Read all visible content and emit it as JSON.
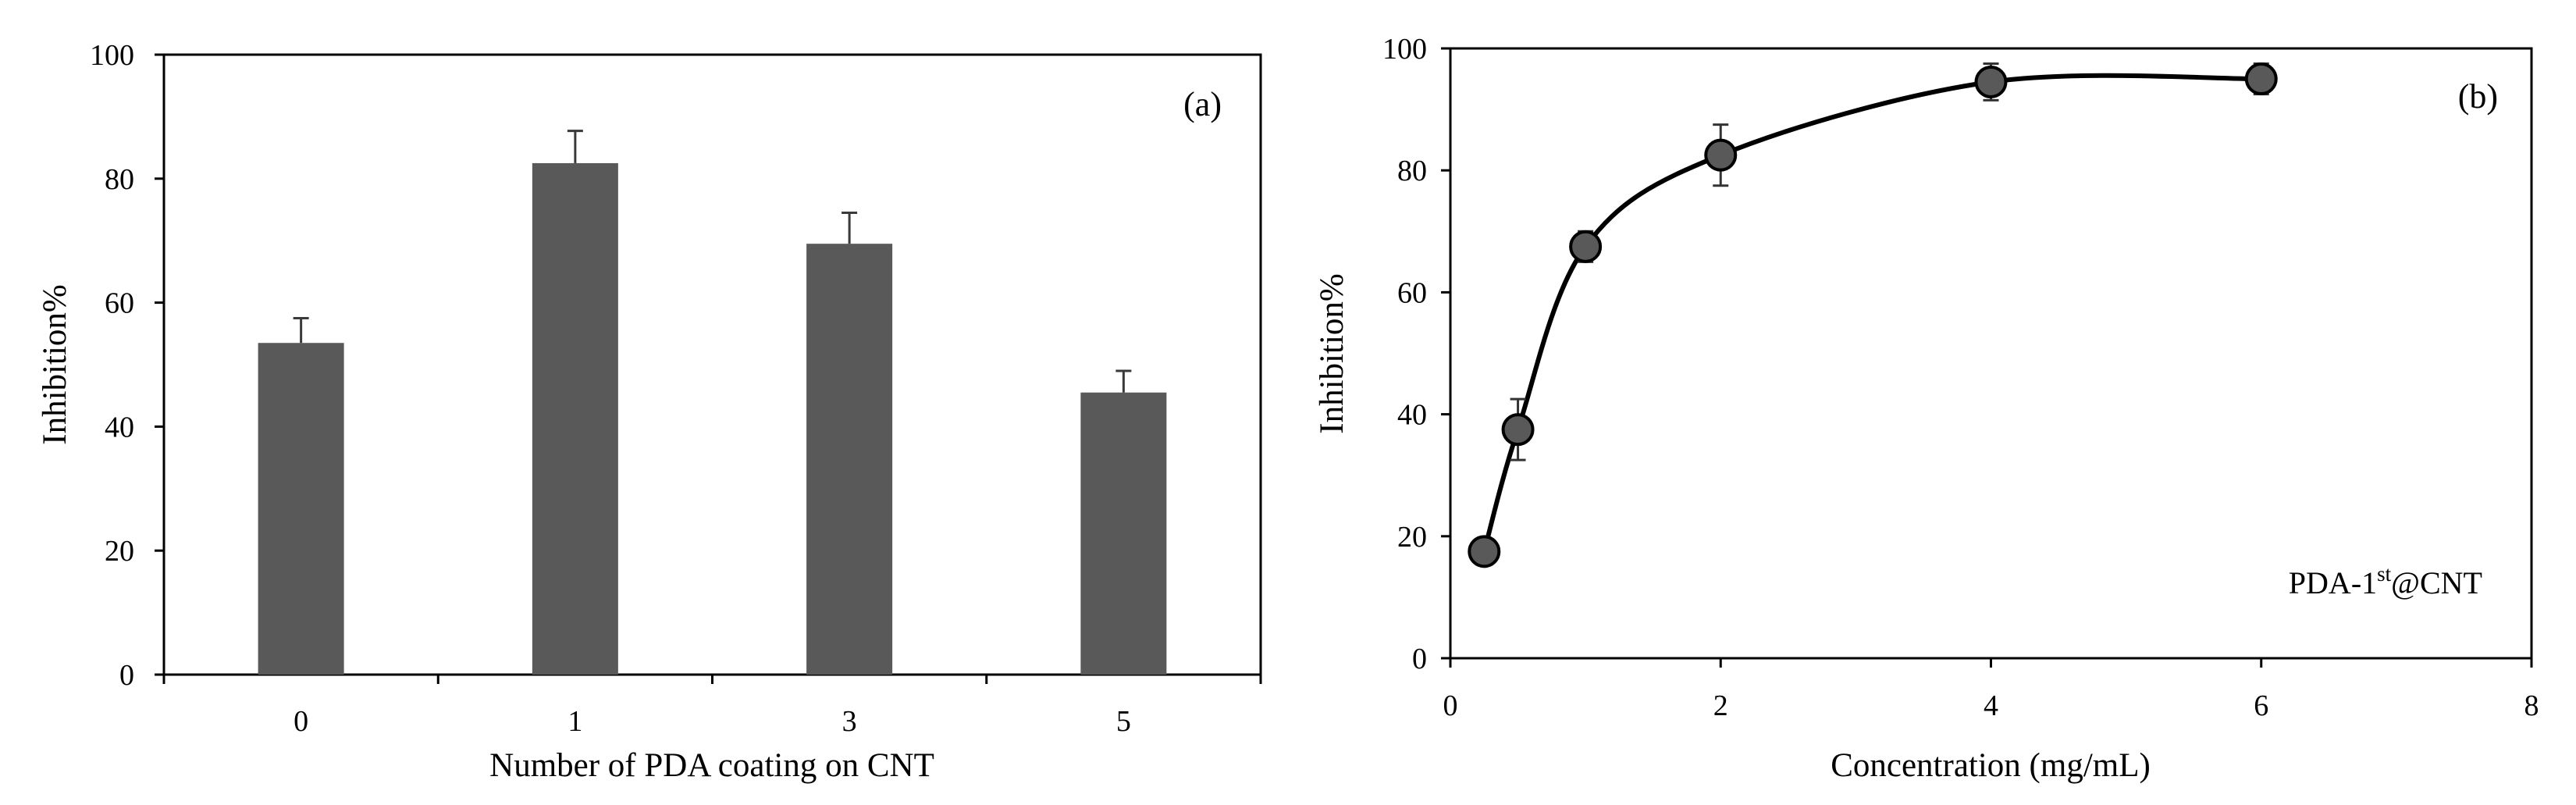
{
  "chart_data": [
    {
      "type": "bar",
      "panel_label": "(a)",
      "categories": [
        "0",
        "1",
        "3",
        "5"
      ],
      "values": [
        53.5,
        82.5,
        69.5,
        45.5
      ],
      "errors": [
        4,
        5.2,
        5,
        3.5
      ],
      "xlabel": "Number of PDA coating on CNT",
      "ylabel": "Inhibition%",
      "ylim": [
        0,
        100
      ],
      "yticks": [
        "0",
        "20",
        "40",
        "60",
        "80",
        "100"
      ],
      "bar_color": "#595959"
    },
    {
      "type": "line",
      "panel_label": "(b)",
      "x": [
        0.25,
        0.5,
        1,
        2,
        4,
        6
      ],
      "y": [
        17.5,
        37.5,
        67.5,
        82.5,
        94.5,
        95
      ],
      "errors": [
        1.5,
        5,
        2.5,
        5,
        3,
        2.5
      ],
      "xlabel": "Concentration (mg/mL)",
      "ylabel": "Inhibition%",
      "xlim": [
        0,
        8
      ],
      "ylim": [
        0,
        100
      ],
      "xticks": [
        "0",
        "2",
        "4",
        "6",
        "8"
      ],
      "yticks": [
        "0",
        "20",
        "40",
        "60",
        "80",
        "100"
      ],
      "annotation": {
        "prefix": "PDA-1",
        "superscript": "st",
        "suffix": "@CNT"
      },
      "marker_color": "#595959",
      "line_color": "#000000"
    }
  ]
}
